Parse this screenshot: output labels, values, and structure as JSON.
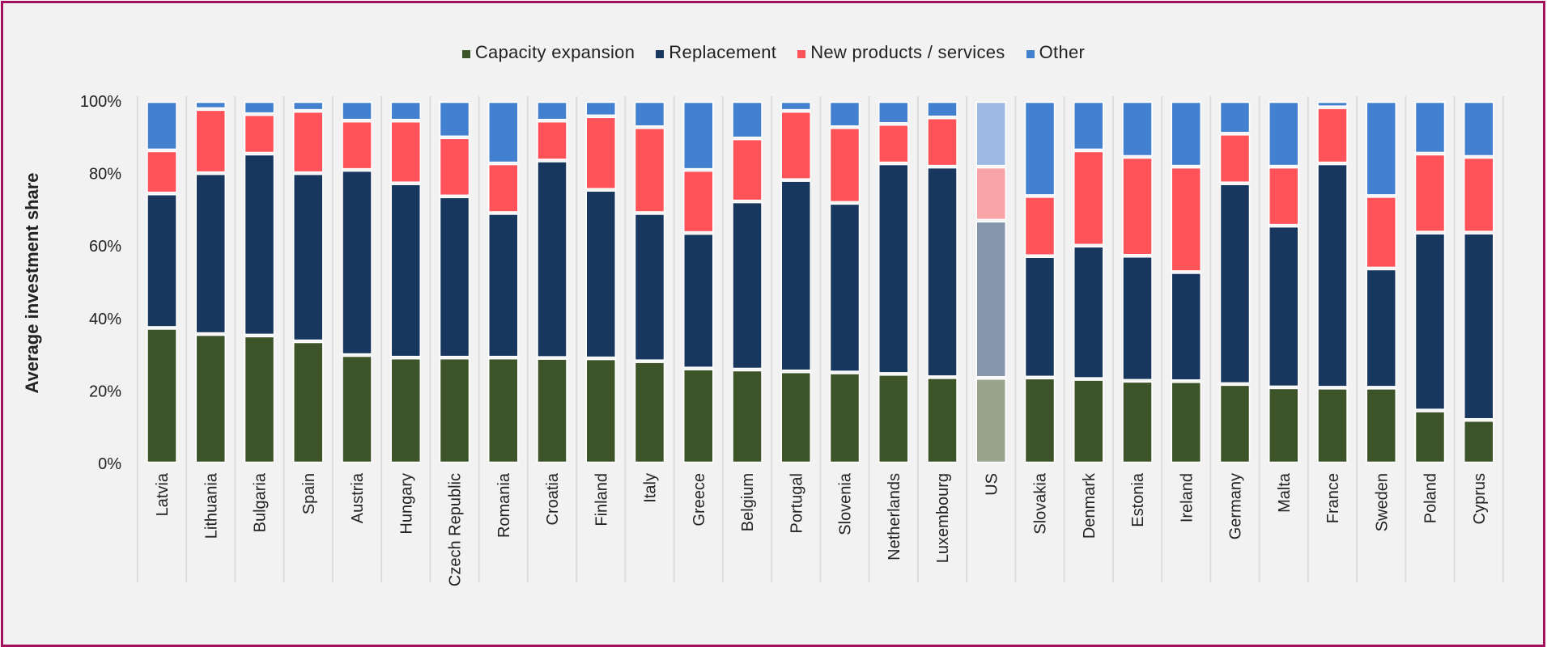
{
  "chart_data": {
    "type": "bar",
    "stacked": true,
    "title": "",
    "xlabel": "",
    "ylabel": "Average investment share",
    "ylim": [
      0,
      100
    ],
    "y_ticks": [
      "0%",
      "20%",
      "40%",
      "60%",
      "80%",
      "100%"
    ],
    "y_tick_values": [
      0,
      20,
      40,
      60,
      80,
      100
    ],
    "legend_position": "top-center",
    "grid": false,
    "categories": [
      "Latvia",
      "Lithuania",
      "Bulgaria",
      "Spain",
      "Austria",
      "Hungary",
      "Czech Republic",
      "Romania",
      "Croatia",
      "Finland",
      "Italy",
      "Greece",
      "Belgium",
      "Portugal",
      "Slovenia",
      "Netherlands",
      "Luxembourg",
      "US",
      "Slovakia",
      "Denmark",
      "Estonia",
      "Ireland",
      "Germany",
      "Malta",
      "France",
      "Sweden",
      "Poland",
      "Cyprus"
    ],
    "highlighted_category": "US",
    "series": [
      {
        "name": "Capacity expansion",
        "color": "#3D5328",
        "faded_color": "#98A48C",
        "values": [
          37.4,
          35.7,
          35.3,
          33.7,
          29.9,
          29.2,
          29.2,
          29.2,
          29.1,
          29.0,
          28.2,
          26.2,
          25.9,
          25.4,
          25.1,
          24.7,
          23.8,
          23.6,
          23.7,
          23.3,
          22.8,
          22.7,
          21.9,
          21.0,
          20.9,
          20.9,
          14.6,
          12.0
        ]
      },
      {
        "name": "Replacement",
        "color": "#18375F",
        "faded_color": "#8595AB",
        "values": [
          37.1,
          44.4,
          50.2,
          46.4,
          51.1,
          48.1,
          44.5,
          39.9,
          54.5,
          46.5,
          40.9,
          37.4,
          46.4,
          52.8,
          46.8,
          58.1,
          58.1,
          43.4,
          33.5,
          36.8,
          34.5,
          30.1,
          55.4,
          44.6,
          61.9,
          32.9,
          49.1,
          51.7
        ]
      },
      {
        "name": "New products / services",
        "color": "#FF5359",
        "faded_color": "#F8A3A5",
        "values": [
          11.9,
          17.7,
          10.9,
          17.2,
          13.6,
          17.3,
          16.3,
          13.7,
          11.0,
          20.3,
          23.7,
          17.4,
          17.4,
          19.1,
          20.9,
          10.9,
          13.6,
          14.9,
          16.6,
          26.3,
          27.3,
          29.1,
          13.7,
          16.3,
          15.5,
          20.0,
          21.8,
          20.9
        ]
      },
      {
        "name": "Other",
        "color": "#4380D0",
        "faded_color": "#9BB9E2",
        "values": [
          13.6,
          2.2,
          3.6,
          2.7,
          5.4,
          5.4,
          10.0,
          17.2,
          5.4,
          4.2,
          7.2,
          19.0,
          10.3,
          2.7,
          7.2,
          6.3,
          4.5,
          18.1,
          26.2,
          13.6,
          15.4,
          18.1,
          9.0,
          18.1,
          1.7,
          26.2,
          14.5,
          15.4
        ]
      }
    ]
  },
  "legend": {
    "items": [
      {
        "label": "Capacity expansion",
        "color": "#3D5328"
      },
      {
        "label": "Replacement",
        "color": "#18375F"
      },
      {
        "label": "New products / services",
        "color": "#FF5359"
      },
      {
        "label": "Other",
        "color": "#4380D0"
      }
    ]
  },
  "colors": {
    "frame_border": "#A3115C",
    "background": "#F2F2F2"
  }
}
